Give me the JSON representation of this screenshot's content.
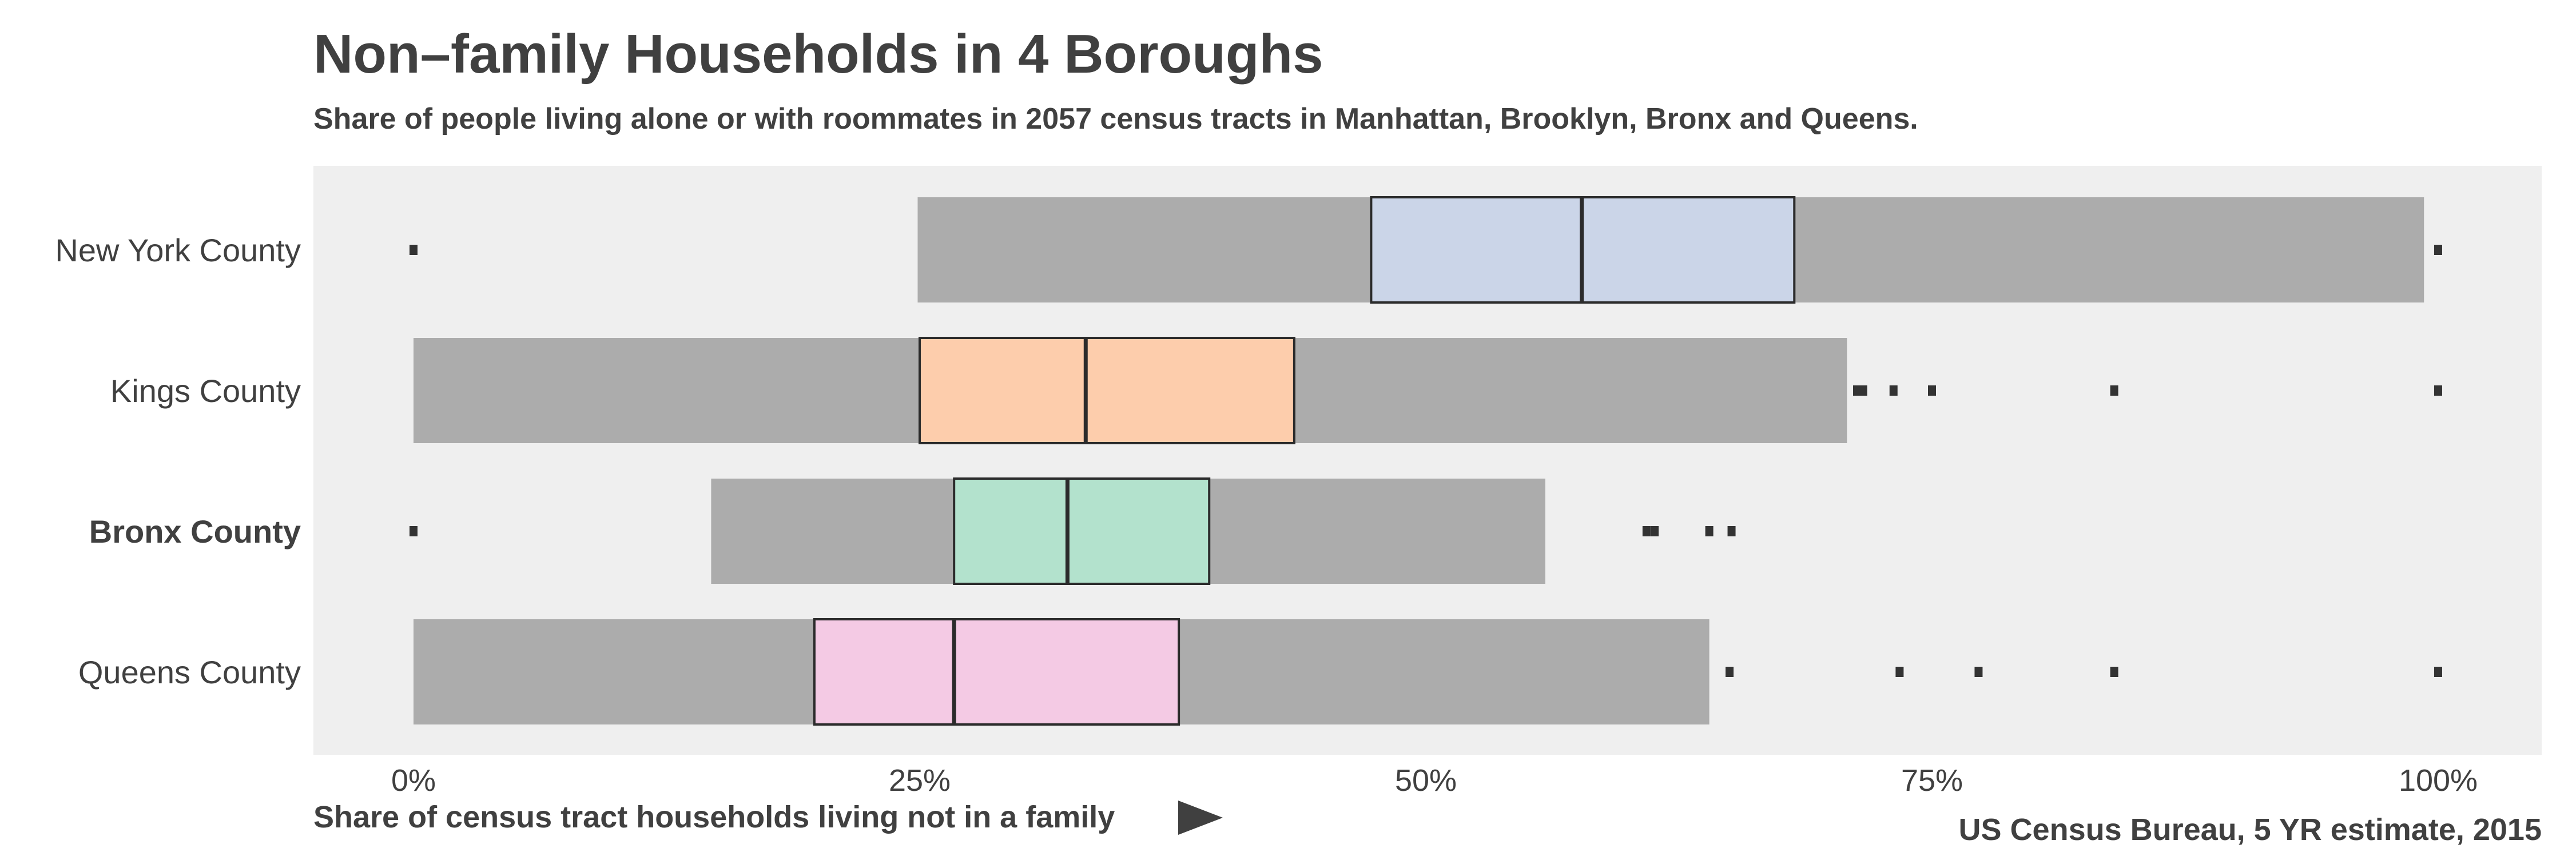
{
  "chart_data": {
    "type": "boxplot",
    "title": "Non–family Households in 4 Boroughs",
    "subtitle": "Share of people living alone or with roommates in 2057 census tracts in Manhattan, Brooklyn, Bronx and Queens.",
    "xlabel": "Share of census tract households living not in a family",
    "ylabel": "",
    "caption": "US Census Bureau, 5 YR estimate, 2015",
    "xlim": [
      -0.05,
      1.03
    ],
    "x_ticks": [
      0,
      0.25,
      0.5,
      0.75,
      1.0
    ],
    "x_tick_labels": [
      "0%",
      "25%",
      "50%",
      "75%",
      "100%"
    ],
    "grid": false,
    "legend": "none",
    "colors": {
      "panel_background": "#efefef",
      "whisker_band": "#acacac",
      "outline": "#2b2b2b",
      "text": "#404040"
    },
    "categories": [
      "New York County",
      "Kings County",
      "Bronx County",
      "Queens County"
    ],
    "highlighted_category": "Bronx County",
    "series": [
      {
        "category": "New York County",
        "fill": "#cbd5e8",
        "whisker_low": 0.249,
        "q1": 0.473,
        "median": 0.577,
        "q3": 0.682,
        "whisker_high": 0.993,
        "outliers": [
          0.0,
          1.0
        ]
      },
      {
        "category": "Kings County",
        "fill": "#fdcdac",
        "whisker_low": 0.0,
        "q1": 0.25,
        "median": 0.332,
        "q3": 0.435,
        "whisker_high": 0.708,
        "outliers": [
          0.713,
          0.716,
          0.731,
          0.75,
          0.84,
          1.0
        ]
      },
      {
        "category": "Bronx County",
        "fill": "#b3e2cd",
        "whisker_low": 0.147,
        "q1": 0.267,
        "median": 0.323,
        "q3": 0.393,
        "whisker_high": 0.559,
        "outliers": [
          0.0,
          0.609,
          0.613,
          0.64,
          0.651
        ]
      },
      {
        "category": "Queens County",
        "fill": "#f4cae4",
        "whisker_low": 0.0,
        "q1": 0.198,
        "median": 0.267,
        "q3": 0.378,
        "whisker_high": 0.64,
        "outliers": [
          0.65,
          0.734,
          0.773,
          0.84,
          1.0
        ]
      }
    ]
  }
}
